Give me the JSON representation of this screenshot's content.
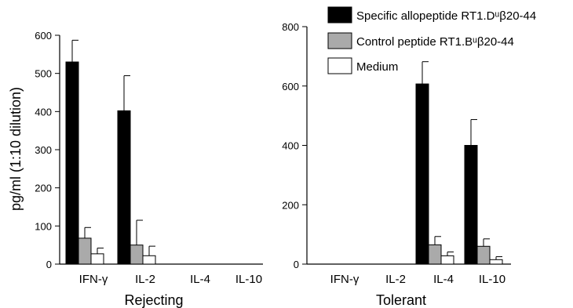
{
  "figure": {
    "ylabel": "pg/ml (1:10 dilution)",
    "legend": {
      "placement": "top-right",
      "entries": [
        {
          "label": "Specific allopeptide RT1.Dᵘβ20-44",
          "color": "#000000"
        },
        {
          "label": "Control peptide RT1.Bᵘβ20-44",
          "color": "#aaaaaa"
        },
        {
          "label": "Medium",
          "color": "#ffffff"
        }
      ]
    }
  },
  "chart_data": [
    {
      "type": "bar",
      "xlabel": "Rejecting",
      "ylabel": "pg/ml (1:10 dilution)",
      "ylim": [
        0,
        600
      ],
      "yticks": [
        0,
        100,
        200,
        300,
        400,
        500,
        600
      ],
      "categories": [
        "IFN-γ",
        "IL-2",
        "IL-4",
        "IL-10"
      ],
      "grid": false,
      "series": [
        {
          "name": "Specific allopeptide RT1.Dᵘβ20-44",
          "color": "#000000",
          "values": [
            530,
            402,
            0,
            0
          ],
          "errors": [
            57,
            92,
            0,
            0
          ]
        },
        {
          "name": "Control peptide RT1.Bᵘβ20-44",
          "color": "#aaaaaa",
          "values": [
            68,
            50,
            0,
            0
          ],
          "errors": [
            28,
            65,
            0,
            0
          ]
        },
        {
          "name": "Medium",
          "color": "#ffffff",
          "values": [
            27,
            22,
            0,
            0
          ],
          "errors": [
            15,
            25,
            0,
            0
          ]
        }
      ]
    },
    {
      "type": "bar",
      "xlabel": "Tolerant",
      "ylim": [
        0,
        800
      ],
      "yticks": [
        0,
        200,
        400,
        600,
        800
      ],
      "categories": [
        "IFN-γ",
        "IL-2",
        "IL-4",
        "IL-10"
      ],
      "grid": false,
      "series": [
        {
          "name": "Specific allopeptide RT1.Dᵘβ20-44",
          "color": "#000000",
          "values": [
            0,
            0,
            607,
            400
          ],
          "errors": [
            0,
            0,
            75,
            87
          ]
        },
        {
          "name": "Control peptide RT1.Bᵘβ20-44",
          "color": "#aaaaaa",
          "values": [
            0,
            0,
            65,
            60
          ],
          "errors": [
            0,
            0,
            28,
            25
          ]
        },
        {
          "name": "Medium",
          "color": "#ffffff",
          "values": [
            0,
            0,
            28,
            15
          ],
          "errors": [
            0,
            0,
            13,
            10
          ]
        }
      ]
    }
  ]
}
